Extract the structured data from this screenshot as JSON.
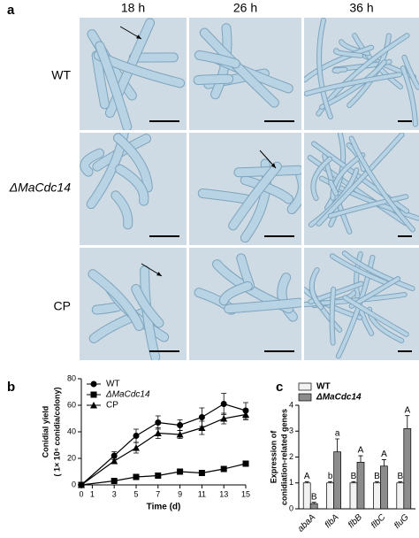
{
  "panel_labels": [
    "a",
    "b",
    "c"
  ],
  "columns": [
    "18 h",
    "26 h",
    "36 h"
  ],
  "rows": [
    "WT",
    "ΔMaCdc14",
    "CP"
  ],
  "chart_data": [
    {
      "type": "line",
      "y_label": [
        "Conidial yield",
        "( 1× 10⁶ conidia/colony)"
      ],
      "x_label": "Time (d)",
      "xlim": [
        0,
        15
      ],
      "xticks": [
        0,
        1,
        3,
        5,
        7,
        9,
        11,
        13,
        15
      ],
      "ylim": [
        0,
        80
      ],
      "yticks": [
        0,
        20,
        40,
        60,
        80
      ],
      "x": [
        0,
        3,
        5,
        7,
        9,
        11,
        13,
        15
      ],
      "legend": "top-left",
      "series": [
        {
          "name": "WT",
          "color": "#000000",
          "marker": "circle",
          "values": [
            0,
            22,
            37,
            47,
            45,
            51,
            61,
            56
          ],
          "errors": [
            0,
            3,
            5,
            5,
            4,
            7,
            8,
            6
          ]
        },
        {
          "name": "ΔMaCdc14",
          "color": "#000000",
          "marker": "square",
          "values": [
            0,
            3,
            6,
            7,
            10,
            9,
            12,
            16
          ],
          "errors": [
            0,
            1,
            1,
            1,
            1,
            1,
            1,
            1
          ]
        },
        {
          "name": "CP",
          "color": "#000000",
          "marker": "triangle",
          "values": [
            0,
            18,
            28,
            39,
            38,
            43,
            50,
            53
          ],
          "errors": [
            0,
            2,
            4,
            4,
            3,
            5,
            4,
            4
          ]
        }
      ]
    },
    {
      "type": "bar",
      "y_label": [
        "Expression of",
        "conidiation-related genes"
      ],
      "categories": [
        "abaA",
        "flbA",
        "flbB",
        "flbC",
        "fluG"
      ],
      "ylim": [
        0,
        4
      ],
      "yticks": [
        0,
        1,
        2,
        3,
        4
      ],
      "legend": "top-left",
      "series": [
        {
          "name": "WT",
          "color": "#f2f2f2",
          "values": [
            1,
            1,
            1,
            1,
            1
          ],
          "errors": [
            0.05,
            0.05,
            0.05,
            0.05,
            0.05
          ],
          "letters": [
            "A",
            "b",
            "B",
            "B",
            "B"
          ]
        },
        {
          "name": "ΔMaCdc14",
          "color": "#8c8c8c",
          "values": [
            0.2,
            2.2,
            1.8,
            1.65,
            3.1
          ],
          "errors": [
            0.05,
            0.5,
            0.25,
            0.25,
            0.5
          ],
          "letters": [
            "B",
            "a",
            "A",
            "A",
            "A"
          ]
        }
      ]
    }
  ]
}
